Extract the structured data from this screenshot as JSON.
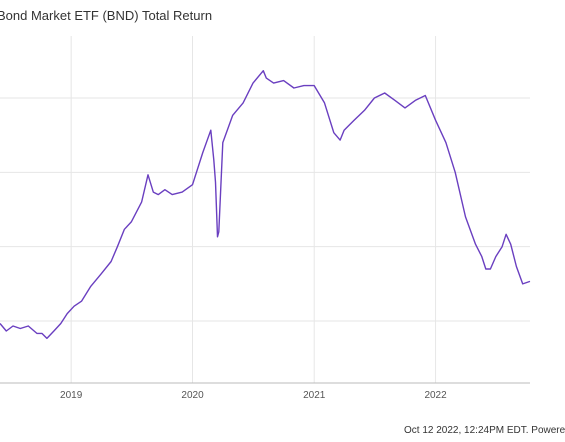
{
  "footer": "Oct 12 2022, 12:24PM EDT. Powere",
  "chart_data": {
    "type": "line",
    "title": "Bond Market ETF (BND) Total Return",
    "xlabel": "",
    "ylabel": "",
    "x_ticks": [
      "2019",
      "2020",
      "2021",
      "2022"
    ],
    "x_range": [
      "2018-06-01",
      "2022-10-12"
    ],
    "grid": true,
    "y_ticks_visible": false,
    "legend": "none",
    "colors": {
      "line": "#6a3fc0",
      "grid": "#e6e6e6",
      "axis": "#bbbbbb"
    },
    "series": [
      {
        "x": [
          "2018-06-01",
          "2018-06-20",
          "2018-07-10",
          "2018-08-01",
          "2018-08-25",
          "2018-09-20",
          "2018-10-05",
          "2018-10-20",
          "2018-11-10",
          "2018-12-01",
          "2018-12-20",
          "2019-01-10",
          "2019-02-01",
          "2019-03-01",
          "2019-04-01",
          "2019-05-01",
          "2019-05-20",
          "2019-06-10",
          "2019-07-01",
          "2019-08-01",
          "2019-08-20",
          "2019-09-05",
          "2019-09-20",
          "2019-10-10",
          "2019-11-01",
          "2019-12-01",
          "2020-01-01",
          "2020-02-01",
          "2020-02-25",
          "2020-03-05",
          "2020-03-10",
          "2020-03-16",
          "2020-03-20",
          "2020-04-01",
          "2020-05-01",
          "2020-06-01",
          "2020-07-01",
          "2020-08-01",
          "2020-08-10",
          "2020-09-01",
          "2020-10-01",
          "2020-11-01",
          "2020-12-01",
          "2021-01-01",
          "2021-02-01",
          "2021-03-01",
          "2021-03-20",
          "2021-04-01",
          "2021-05-01",
          "2021-06-01",
          "2021-07-01",
          "2021-08-01",
          "2021-09-01",
          "2021-10-01",
          "2021-11-01",
          "2021-12-01",
          "2022-01-01",
          "2022-02-01",
          "2022-03-01",
          "2022-04-01",
          "2022-05-01",
          "2022-05-20",
          "2022-06-01",
          "2022-06-15",
          "2022-07-01",
          "2022-07-20",
          "2022-08-01",
          "2022-08-15",
          "2022-09-01",
          "2022-09-20",
          "2022-10-12"
        ],
        "y": [
          97.9,
          97.6,
          97.8,
          97.7,
          97.8,
          97.5,
          97.5,
          97.3,
          97.6,
          97.9,
          98.3,
          98.6,
          98.8,
          99.4,
          99.9,
          100.4,
          101.0,
          101.7,
          102.0,
          102.8,
          103.9,
          103.2,
          103.1,
          103.3,
          103.1,
          103.2,
          103.5,
          104.8,
          105.7,
          104.5,
          103.6,
          101.4,
          101.6,
          105.2,
          106.3,
          106.8,
          107.6,
          108.1,
          107.8,
          107.6,
          107.7,
          107.4,
          107.5,
          107.5,
          106.8,
          105.6,
          105.3,
          105.7,
          106.1,
          106.5,
          107.0,
          107.2,
          106.9,
          106.6,
          106.9,
          107.1,
          106.1,
          105.2,
          104.0,
          102.2,
          101.1,
          100.6,
          100.1,
          100.1,
          100.6,
          101.0,
          101.5,
          101.1,
          100.2,
          99.5,
          99.6
        ]
      }
    ]
  }
}
